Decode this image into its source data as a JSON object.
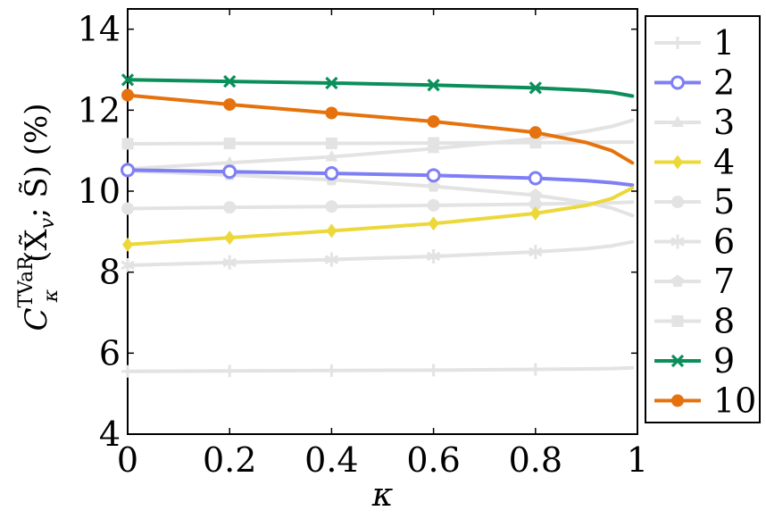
{
  "chart_data": {
    "type": "line",
    "title": "",
    "xlabel": "κ",
    "ylabel": "C_κ^TVaR(X̃_v; S̃) (%)",
    "ylabel_parts": {
      "main": "C",
      "sub": "κ",
      "sup": "TVaR",
      "args": "(X̃",
      "args_sub": "v",
      "args_tail": "; S̃) (%)"
    },
    "xlim": [
      0,
      1
    ],
    "ylim": [
      4,
      14.5
    ],
    "xticks": [
      "0",
      "0.2",
      "0.4",
      "0.6",
      "0.8",
      "1"
    ],
    "yticks": [
      "4",
      "6",
      "8",
      "10",
      "12",
      "14"
    ],
    "grid": false,
    "legend_position": "right-outside",
    "marker_x": [
      0,
      0.2,
      0.4,
      0.6,
      0.8
    ],
    "series": [
      {
        "name": "1",
        "color": "#e3e3e3",
        "marker": "plus",
        "x": [
          0,
          0.2,
          0.4,
          0.6,
          0.8,
          0.9,
          0.95,
          0.99
        ],
        "y": [
          5.55,
          5.56,
          5.57,
          5.58,
          5.6,
          5.61,
          5.62,
          5.64
        ]
      },
      {
        "name": "2",
        "color": "#7f7ff5",
        "marker": "circle-open",
        "x": [
          0,
          0.2,
          0.4,
          0.6,
          0.8,
          0.9,
          0.95,
          0.99
        ],
        "y": [
          10.52,
          10.48,
          10.44,
          10.39,
          10.32,
          10.26,
          10.21,
          10.15
        ]
      },
      {
        "name": "3",
        "color": "#e3e3e3",
        "marker": "triangle",
        "x": [
          0,
          0.2,
          0.4,
          0.6,
          0.8,
          0.9,
          0.95,
          0.99
        ],
        "y": [
          10.55,
          10.7,
          10.85,
          11.05,
          11.3,
          11.48,
          11.6,
          11.75
        ]
      },
      {
        "name": "4",
        "color": "#ecd83a",
        "marker": "diamond",
        "x": [
          0,
          0.2,
          0.4,
          0.6,
          0.8,
          0.9,
          0.95,
          0.99
        ],
        "y": [
          8.68,
          8.85,
          9.02,
          9.2,
          9.45,
          9.65,
          9.82,
          10.08
        ]
      },
      {
        "name": "5",
        "color": "#e3e3e3",
        "marker": "circle",
        "x": [
          0,
          0.2,
          0.4,
          0.6,
          0.8,
          0.9,
          0.95,
          0.99
        ],
        "y": [
          9.57,
          9.6,
          9.62,
          9.65,
          9.68,
          9.7,
          9.71,
          9.73
        ]
      },
      {
        "name": "6",
        "color": "#e3e3e3",
        "marker": "star",
        "x": [
          0,
          0.2,
          0.4,
          0.6,
          0.8,
          0.9,
          0.95,
          0.99
        ],
        "y": [
          8.17,
          8.24,
          8.31,
          8.39,
          8.5,
          8.58,
          8.65,
          8.75
        ]
      },
      {
        "name": "7",
        "color": "#e3e3e3",
        "marker": "pentagon",
        "x": [
          0,
          0.2,
          0.4,
          0.6,
          0.8,
          0.9,
          0.95,
          0.99
        ],
        "y": [
          10.5,
          10.4,
          10.28,
          10.12,
          9.9,
          9.72,
          9.58,
          9.4
        ]
      },
      {
        "name": "8",
        "color": "#e3e3e3",
        "marker": "square",
        "x": [
          0,
          0.2,
          0.4,
          0.6,
          0.8,
          0.9,
          0.95,
          0.99
        ],
        "y": [
          11.17,
          11.18,
          11.18,
          11.19,
          11.2,
          11.2,
          11.21,
          11.21
        ]
      },
      {
        "name": "9",
        "color": "#0a8f5a",
        "marker": "x",
        "x": [
          0,
          0.2,
          0.4,
          0.6,
          0.8,
          0.9,
          0.95,
          0.99
        ],
        "y": [
          12.75,
          12.71,
          12.67,
          12.62,
          12.55,
          12.49,
          12.44,
          12.35
        ]
      },
      {
        "name": "10",
        "color": "#e5720c",
        "marker": "circle",
        "x": [
          0,
          0.2,
          0.4,
          0.6,
          0.8,
          0.9,
          0.95,
          0.99
        ],
        "y": [
          12.37,
          12.14,
          11.93,
          11.72,
          11.45,
          11.2,
          11.0,
          10.7
        ]
      }
    ]
  }
}
